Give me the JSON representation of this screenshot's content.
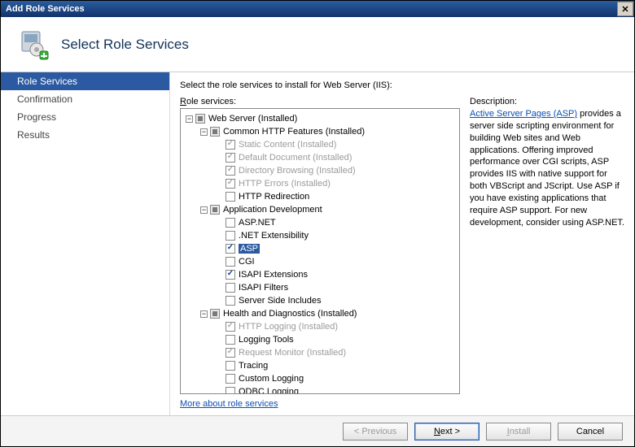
{
  "window": {
    "title": "Add Role Services"
  },
  "header": {
    "title": "Select Role Services"
  },
  "sidebar": {
    "items": [
      {
        "label": "Role Services",
        "active": true
      },
      {
        "label": "Confirmation",
        "active": false
      },
      {
        "label": "Progress",
        "active": false
      },
      {
        "label": "Results",
        "active": false
      }
    ]
  },
  "main": {
    "instruction": "Select the role services to install for Web Server (IIS):",
    "role_services_label": "Role services:",
    "description_label": "Description:",
    "more_link": "More about role services",
    "description": {
      "link_text": "Active Server Pages (ASP)",
      "body": " provides a server side scripting environment for building Web sites and Web applications. Offering improved performance over CGI scripts, ASP provides IIS with native support for both VBScript and JScript. Use ASP if you have existing applications that require ASP support. For new development, consider using ASP.NET."
    },
    "tree": [
      {
        "indent": 0,
        "toggle": "-",
        "check": "indet",
        "label": "Web Server  (Installed)",
        "gray": false
      },
      {
        "indent": 1,
        "toggle": "-",
        "check": "indet",
        "label": "Common HTTP Features  (Installed)",
        "gray": false
      },
      {
        "indent": 2,
        "toggle": "",
        "check": "checked-gray",
        "label": "Static Content  (Installed)",
        "gray": true
      },
      {
        "indent": 2,
        "toggle": "",
        "check": "checked-gray",
        "label": "Default Document  (Installed)",
        "gray": true
      },
      {
        "indent": 2,
        "toggle": "",
        "check": "checked-gray",
        "label": "Directory Browsing  (Installed)",
        "gray": true
      },
      {
        "indent": 2,
        "toggle": "",
        "check": "checked-gray",
        "label": "HTTP Errors  (Installed)",
        "gray": true
      },
      {
        "indent": 2,
        "toggle": "",
        "check": "empty",
        "label": "HTTP Redirection",
        "gray": false
      },
      {
        "indent": 1,
        "toggle": "-",
        "check": "indet",
        "label": "Application Development",
        "gray": false
      },
      {
        "indent": 2,
        "toggle": "",
        "check": "empty",
        "label": "ASP.NET",
        "gray": false
      },
      {
        "indent": 2,
        "toggle": "",
        "check": "empty",
        "label": ".NET Extensibility",
        "gray": false
      },
      {
        "indent": 2,
        "toggle": "",
        "check": "checked-blue",
        "label": "ASP",
        "gray": false,
        "selected": true
      },
      {
        "indent": 2,
        "toggle": "",
        "check": "empty",
        "label": "CGI",
        "gray": false
      },
      {
        "indent": 2,
        "toggle": "",
        "check": "checked-blue",
        "label": "ISAPI Extensions",
        "gray": false
      },
      {
        "indent": 2,
        "toggle": "",
        "check": "empty",
        "label": "ISAPI Filters",
        "gray": false
      },
      {
        "indent": 2,
        "toggle": "",
        "check": "empty",
        "label": "Server Side Includes",
        "gray": false
      },
      {
        "indent": 1,
        "toggle": "-",
        "check": "indet",
        "label": "Health and Diagnostics  (Installed)",
        "gray": false
      },
      {
        "indent": 2,
        "toggle": "",
        "check": "checked-gray",
        "label": "HTTP Logging  (Installed)",
        "gray": true
      },
      {
        "indent": 2,
        "toggle": "",
        "check": "empty",
        "label": "Logging Tools",
        "gray": false
      },
      {
        "indent": 2,
        "toggle": "",
        "check": "checked-gray",
        "label": "Request Monitor  (Installed)",
        "gray": true
      },
      {
        "indent": 2,
        "toggle": "",
        "check": "empty",
        "label": "Tracing",
        "gray": false
      },
      {
        "indent": 2,
        "toggle": "",
        "check": "empty",
        "label": "Custom Logging",
        "gray": false
      },
      {
        "indent": 2,
        "toggle": "",
        "check": "empty",
        "label": "ODBC Logging",
        "gray": false
      }
    ]
  },
  "footer": {
    "previous": "< Previous",
    "next": "Next >",
    "install": "Install",
    "cancel": "Cancel"
  }
}
